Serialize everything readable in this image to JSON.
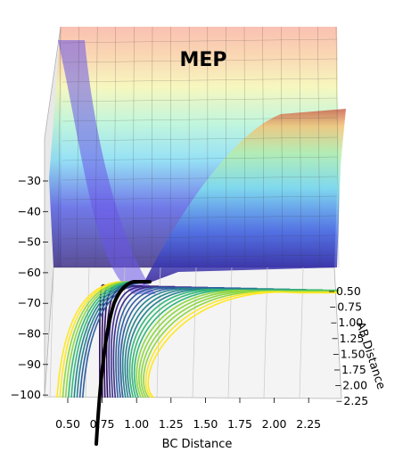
{
  "chart_data": {
    "type": "surface",
    "title": "MEP",
    "xlabel": "BC Distance",
    "ylabel": "AB Distance",
    "zlabel": "",
    "x_ticks": [
      "0.50",
      "0.75",
      "1.00",
      "1.25",
      "1.50",
      "1.75",
      "2.00",
      "2.25"
    ],
    "y_ticks": [
      "0.50",
      "0.75",
      "1.00",
      "1.25",
      "1.50",
      "1.75",
      "2.00",
      "2.25"
    ],
    "z_ticks": [
      "−30",
      "−40",
      "−50",
      "−60",
      "−70",
      "−80",
      "−90",
      "−100"
    ],
    "x_range": [
      0.35,
      2.5
    ],
    "y_range": [
      0.5,
      2.25
    ],
    "z_range": [
      -100,
      -25
    ],
    "surface_colors": [
      "#2a0a8c",
      "#3b2ee8",
      "#5aa0f0",
      "#7fe6f5",
      "#a8f0c8",
      "#f5f5a8",
      "#f8c896",
      "#f8a090"
    ],
    "contour_colors": [
      "#2b0b5e",
      "#3b2f8a",
      "#2f5fa0",
      "#26828e",
      "#35b779",
      "#8fd744",
      "#fde725"
    ],
    "mep_path_color": "#000000",
    "grid": true
  }
}
